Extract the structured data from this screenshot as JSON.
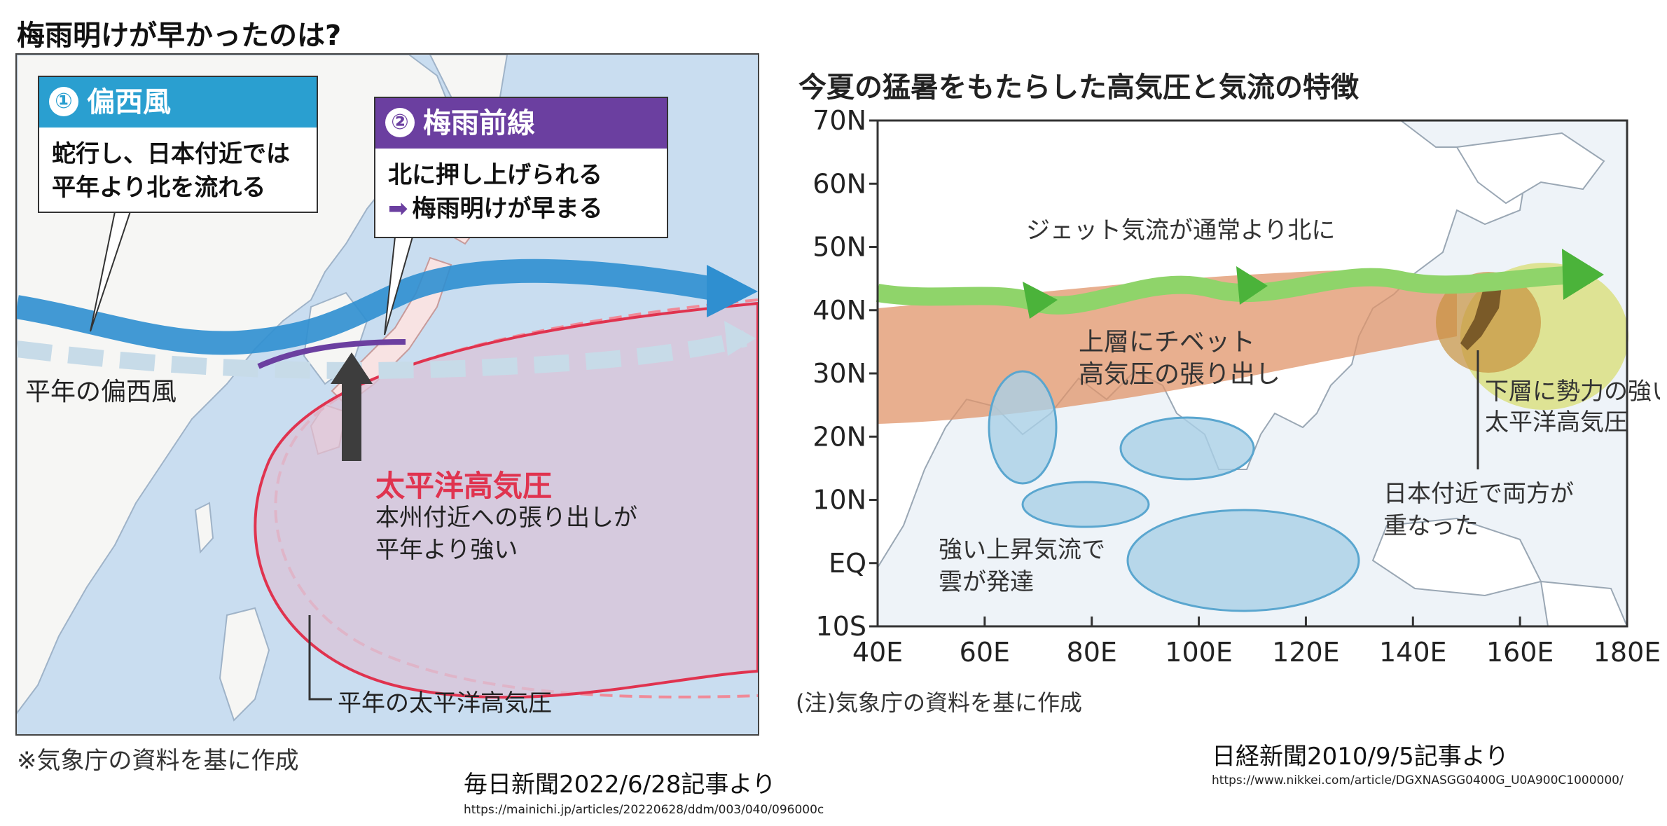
{
  "left": {
    "title": "梅雨明けが早かったのは?",
    "callout1": {
      "number": "①",
      "heading": "偏西風",
      "line1": "蛇行し、日本付近では",
      "line2": "平年より北を流れる",
      "color": "#2a9fd0"
    },
    "callout2": {
      "number": "②",
      "heading": "梅雨前線",
      "line1": "北に押し上げられる",
      "line2": "梅雨明けが早まる",
      "arrow_glyph": "➡",
      "color": "#6b3fa0"
    },
    "label_normal_westerly": "平年の偏西風",
    "high_pressure": {
      "title": "太平洋高気圧",
      "line1": "本州付近への張り出しが",
      "line2": "平年より強い",
      "title_color": "#e0334f"
    },
    "label_normal_high": "平年の太平洋高気圧",
    "note": "※気象庁の資料を基に作成",
    "source": "毎日新聞2022/6/28記事より",
    "url": "https://mainichi.jp/articles/20220628/ddm/003/040/096000c"
  },
  "right": {
    "title": "今夏の猛暑をもたらした高気圧と気流の特徴",
    "y_ticks": [
      "70N",
      "60N",
      "50N",
      "40N",
      "30N",
      "20N",
      "10N",
      "EQ",
      "10S"
    ],
    "x_ticks": [
      "40E",
      "60E",
      "80E",
      "100E",
      "120E",
      "140E",
      "160E",
      "180E"
    ],
    "label_jet": "ジェット気流が通常より北に",
    "label_tibet_1": "上層にチベット",
    "label_tibet_2": "高気圧の張り出し",
    "label_pacific_1": "下層に勢力の強い",
    "label_pacific_2": "太平洋高気圧",
    "label_overlap_1": "日本付近で両方が",
    "label_overlap_2": "重なった",
    "label_cloud_1": "強い上昇気流で",
    "label_cloud_2": "雲が発達",
    "note": "(注)気象庁の資料を基に作成",
    "source": "日経新聞2010/9/5記事より",
    "url": "https://www.nikkei.com/article/DGXNASGG0400G_U0A900C1000000/",
    "colors": {
      "jet": "#8fd46a",
      "jet_arrow": "#4bb33a",
      "tibet": "#e0946a",
      "pacific": "#d9df7a",
      "cloud": "#a9cfe6",
      "ocean": "#eef3f8"
    }
  }
}
